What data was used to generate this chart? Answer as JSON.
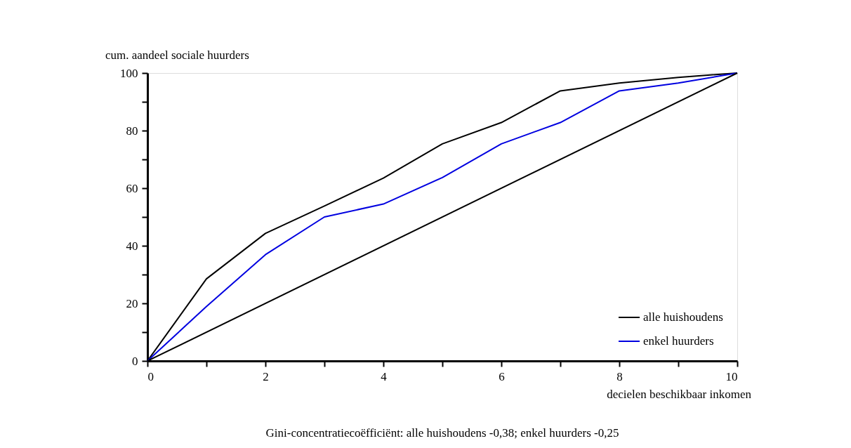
{
  "chart_data": {
    "type": "line",
    "ylabel": "cum. aandeel sociale huurders",
    "xlabel": "decielen beschikbaar inkomen",
    "annotations": [
      "Gini-concentratiecoëfficiënt: alle huishoudens -0,38; enkel huurders -0,25"
    ],
    "x": [
      0,
      1,
      2,
      3,
      4,
      5,
      6,
      7,
      8,
      9,
      10
    ],
    "series": [
      {
        "name": "alle huishoudens",
        "color": "#000000",
        "values": [
          0,
          28.5,
          44.3,
          53.8,
          63.5,
          75.4,
          82.8,
          93.8,
          96.5,
          98.5,
          100
        ]
      },
      {
        "name": "enkel huurders",
        "color": "#0000e0",
        "values": [
          0,
          18.9,
          36.9,
          50.0,
          54.5,
          63.7,
          75.4,
          82.8,
          93.8,
          96.5,
          100
        ]
      },
      {
        "color": "#000000",
        "x": [
          0,
          10
        ],
        "values": [
          0,
          100
        ]
      }
    ],
    "xlim": [
      0,
      10
    ],
    "ylim": [
      0,
      100
    ],
    "xticks": [
      0,
      {
        "value": 1,
        "label": null
      },
      2,
      {
        "value": 3,
        "label": null
      },
      4,
      {
        "value": 5,
        "label": null
      },
      6,
      {
        "value": 7,
        "label": null
      },
      8,
      {
        "value": 9,
        "label": null
      },
      10
    ],
    "yticks": [
      0,
      {
        "value": 10,
        "label": null
      },
      20,
      {
        "value": 30,
        "label": null
      },
      40,
      {
        "value": 50,
        "label": null
      },
      60,
      {
        "value": 70,
        "label": null
      },
      80,
      {
        "value": 90,
        "label": null
      },
      100
    ],
    "grid": false,
    "legend": "bottom right",
    "marker": "none",
    "line_style": "solid"
  }
}
